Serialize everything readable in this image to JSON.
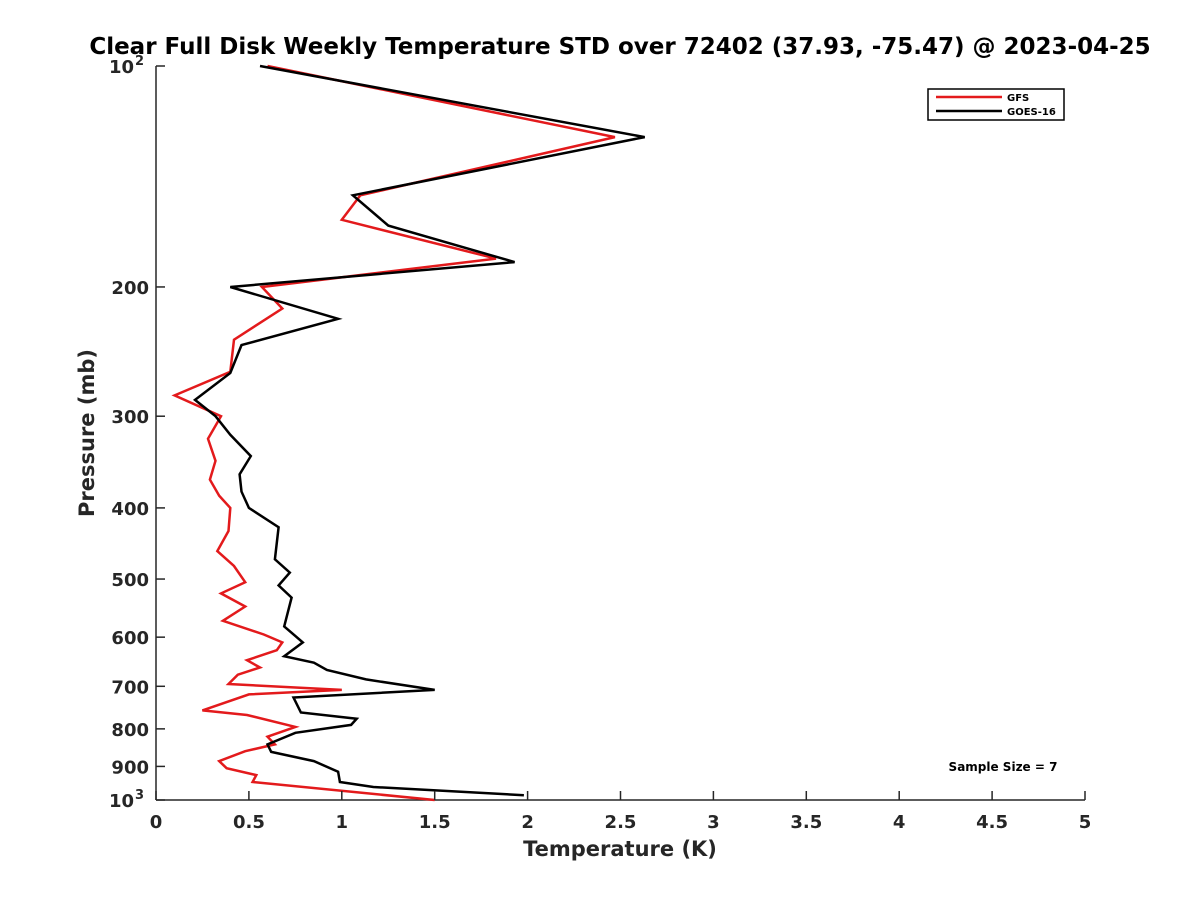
{
  "chart_data": {
    "type": "line",
    "title": "Clear Full Disk Weekly Temperature STD over 72402 (37.93, -75.47) @ 2023-04-25",
    "xlabel": "Temperature (K)",
    "ylabel": "Pressure (mb)",
    "xlim": [
      0,
      5
    ],
    "ylim": [
      100,
      1000
    ],
    "y_scale": "log",
    "y_reversed": true,
    "grid": false,
    "x_ticks": [
      {
        "value": 0,
        "label": "0"
      },
      {
        "value": 0.5,
        "label": "0.5"
      },
      {
        "value": 1,
        "label": "1"
      },
      {
        "value": 1.5,
        "label": "1.5"
      },
      {
        "value": 2,
        "label": "2"
      },
      {
        "value": 2.5,
        "label": "2.5"
      },
      {
        "value": 3,
        "label": "3"
      },
      {
        "value": 3.5,
        "label": "3.5"
      },
      {
        "value": 4,
        "label": "4"
      },
      {
        "value": 4.5,
        "label": "4.5"
      },
      {
        "value": 5,
        "label": "5"
      }
    ],
    "y_ticks": [
      {
        "value": 100,
        "base": "10",
        "exp": "2"
      },
      {
        "value": 200,
        "label": "200"
      },
      {
        "value": 300,
        "label": "300"
      },
      {
        "value": 400,
        "label": "400"
      },
      {
        "value": 500,
        "label": "500"
      },
      {
        "value": 600,
        "label": "600"
      },
      {
        "value": 700,
        "label": "700"
      },
      {
        "value": 800,
        "label": "800"
      },
      {
        "value": 900,
        "label": "900"
      },
      {
        "value": 1000,
        "base": "10",
        "exp": "3"
      }
    ],
    "legend": {
      "placement": "top-right"
    },
    "annotation": "Sample Size = 7",
    "series": [
      {
        "name": "GFS",
        "color": "#e31a1c",
        "points": [
          [
            0.6,
            100
          ],
          [
            2.47,
            125
          ],
          [
            1.1,
            150
          ],
          [
            1.0,
            162
          ],
          [
            1.83,
            183
          ],
          [
            0.57,
            200
          ],
          [
            0.68,
            214
          ],
          [
            0.42,
            236
          ],
          [
            0.4,
            261
          ],
          [
            0.1,
            281
          ],
          [
            0.35,
            300
          ],
          [
            0.28,
            322
          ],
          [
            0.32,
            345
          ],
          [
            0.29,
            366
          ],
          [
            0.34,
            385
          ],
          [
            0.4,
            400
          ],
          [
            0.39,
            430
          ],
          [
            0.33,
            458
          ],
          [
            0.42,
            480
          ],
          [
            0.48,
            505
          ],
          [
            0.35,
            523
          ],
          [
            0.48,
            545
          ],
          [
            0.36,
            570
          ],
          [
            0.58,
            595
          ],
          [
            0.68,
            610
          ],
          [
            0.65,
            625
          ],
          [
            0.49,
            645
          ],
          [
            0.56,
            660
          ],
          [
            0.44,
            675
          ],
          [
            0.39,
            695
          ],
          [
            1.0,
            708
          ],
          [
            0.5,
            718
          ],
          [
            0.25,
            755
          ],
          [
            0.49,
            766
          ],
          [
            0.75,
            795
          ],
          [
            0.6,
            820
          ],
          [
            0.64,
            840
          ],
          [
            0.48,
            858
          ],
          [
            0.34,
            885
          ],
          [
            0.38,
            905
          ],
          [
            0.54,
            925
          ],
          [
            0.52,
            945
          ],
          [
            1.5,
            1000
          ]
        ]
      },
      {
        "name": "GOES-16",
        "color": "#000000",
        "points": [
          [
            0.56,
            100
          ],
          [
            2.63,
            125
          ],
          [
            1.06,
            150
          ],
          [
            1.25,
            165
          ],
          [
            1.93,
            185
          ],
          [
            0.4,
            200
          ],
          [
            0.98,
            221
          ],
          [
            0.46,
            240
          ],
          [
            0.4,
            262
          ],
          [
            0.21,
            285
          ],
          [
            0.32,
            300
          ],
          [
            0.4,
            318
          ],
          [
            0.51,
            340
          ],
          [
            0.45,
            360
          ],
          [
            0.46,
            380
          ],
          [
            0.5,
            400
          ],
          [
            0.66,
            425
          ],
          [
            0.64,
            470
          ],
          [
            0.72,
            490
          ],
          [
            0.66,
            510
          ],
          [
            0.73,
            530
          ],
          [
            0.69,
            580
          ],
          [
            0.79,
            610
          ],
          [
            0.69,
            637
          ],
          [
            0.85,
            650
          ],
          [
            0.92,
            665
          ],
          [
            1.13,
            685
          ],
          [
            1.5,
            708
          ],
          [
            0.74,
            725
          ],
          [
            0.78,
            760
          ],
          [
            1.08,
            775
          ],
          [
            1.05,
            790
          ],
          [
            0.75,
            810
          ],
          [
            0.6,
            840
          ],
          [
            0.62,
            860
          ],
          [
            0.85,
            885
          ],
          [
            0.98,
            915
          ],
          [
            0.99,
            945
          ],
          [
            1.17,
            960
          ],
          [
            1.98,
            985
          ]
        ]
      }
    ]
  }
}
